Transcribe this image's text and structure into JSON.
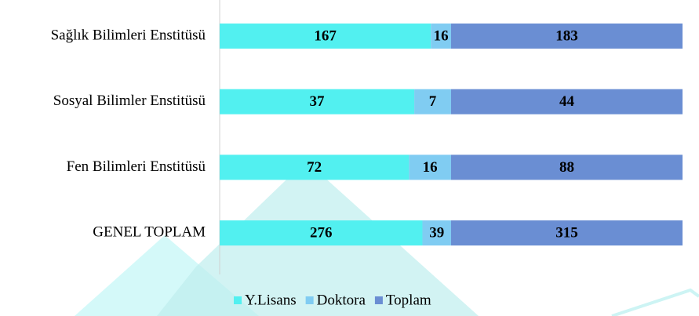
{
  "chart_data": {
    "type": "bar",
    "orientation": "horizontal",
    "stacked": true,
    "normalized": true,
    "categories": [
      "Sağlık Bilimleri Enstitüsü",
      "Sosyal Bilimler Enstitüsü",
      "Fen Bilimleri Enstitüsü",
      "GENEL TOPLAM"
    ],
    "series": [
      {
        "name": "Y.Lisans",
        "color": "#52f0f0",
        "values": [
          167,
          37,
          72,
          276
        ]
      },
      {
        "name": "Doktora",
        "color": "#80ccf2",
        "values": [
          16,
          7,
          16,
          39
        ]
      },
      {
        "name": "Toplam",
        "color": "#6a8ed3",
        "values": [
          183,
          44,
          88,
          315
        ]
      }
    ],
    "legend": "bottom"
  }
}
